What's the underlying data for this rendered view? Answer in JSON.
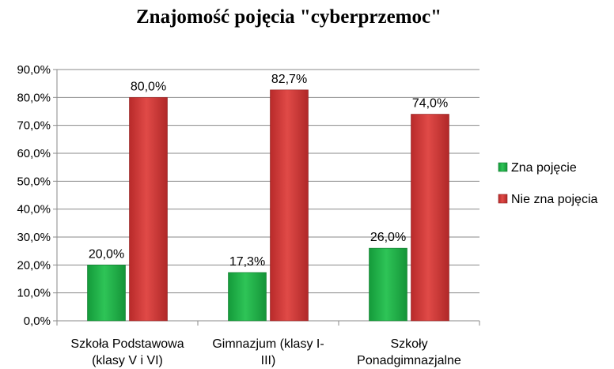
{
  "chart_data": {
    "type": "bar",
    "title": "Znajomość pojęcia \"cyberprzemoc\"",
    "categories": [
      [
        "Szkoła Podstawowa",
        "(klasy V i VI)"
      ],
      [
        "Gimnazjum (klasy I-",
        "III)"
      ],
      [
        "Szkoły",
        "Ponadgimnazjalne"
      ]
    ],
    "series": [
      {
        "name": "Zna pojęcie",
        "values": [
          20.0,
          17.3,
          26.0
        ],
        "labels": [
          "20,0%",
          "17,3%",
          "26,0%"
        ],
        "color": "#22b04a"
      },
      {
        "name": "Nie zna pojęcia",
        "values": [
          80.0,
          82.7,
          74.0
        ],
        "labels": [
          "80,0%",
          "82,7%",
          "74,0%"
        ],
        "color": "#d23a38"
      }
    ],
    "ylim": [
      0,
      90
    ],
    "yticks": [
      "0,0%",
      "10,0%",
      "20,0%",
      "30,0%",
      "40,0%",
      "50,0%",
      "60,0%",
      "70,0%",
      "80,0%",
      "90,0%"
    ],
    "grid": true,
    "legend_position": "right",
    "xlabel": "",
    "ylabel": ""
  }
}
